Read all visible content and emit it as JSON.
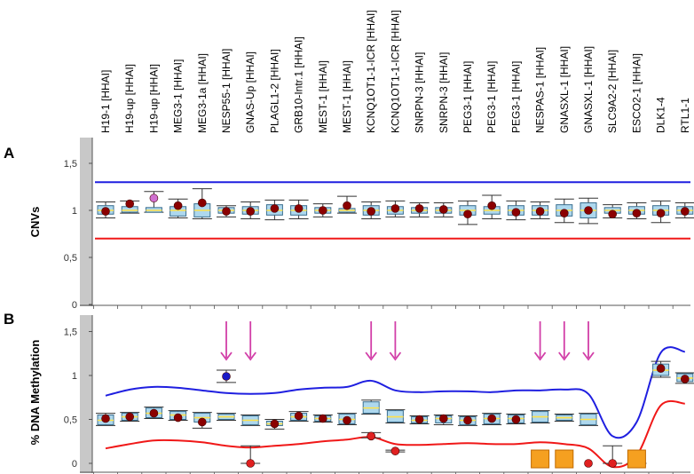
{
  "chart_data": [
    {
      "panel": "A",
      "type": "box",
      "ylabel": "CNVs",
      "ylim": [
        0,
        1.6
      ],
      "yticks": [
        "0",
        "0,5",
        "1",
        "1,5"
      ],
      "ytick_values": [
        0,
        0.5,
        1,
        1.5
      ],
      "threshold_upper": 1.3,
      "threshold_lower": 0.7,
      "probes": [
        "H19-1 [HHAI]",
        "H19-up [HHAI]",
        "H19-up [HHAI]",
        "MEG3-1 [HHAI]",
        "MEG3-1a [HHAI]",
        "NESP55-1 [HHAI]",
        "GNAS-Up [HHAI]",
        "PLAGL1-2 [HHAI]",
        "GRB10-Intr.1 [HHAI]",
        "MEST-1 [HHAI]",
        "MEST-1 [HHAI]",
        "KCNQ1OT1-1-ICR [HHAI]",
        "KCNQ1OT1-1-ICR [HHAI]",
        "SNRPN-3 [HHAI]",
        "SNRPN-3 [HHAI]",
        "PEG3-1 [HHAI]",
        "PEG3-1 [HHAI]",
        "PEG3-1 [HHAI]",
        "NESPAS-1 [HHAI]",
        "GNASXL-1 [HHAI]",
        "GNASXL-1 [HHAI]",
        "SLC9A2-2 [HHAI]",
        "ESCO2-1 [HHAI]",
        "DLK1-4",
        "RTL1-1"
      ],
      "boxes": [
        {
          "q1": 0.96,
          "q3": 1.05,
          "lo": 0.92,
          "hi": 1.09,
          "med": 1.0
        },
        {
          "q1": 0.98,
          "q3": 1.04,
          "lo": 0.97,
          "hi": 1.1,
          "med": 1.0
        },
        {
          "q1": 0.98,
          "q3": 1.03,
          "lo": 0.98,
          "hi": 1.2,
          "med": 1.0
        },
        {
          "q1": 0.94,
          "q3": 1.04,
          "lo": 0.92,
          "hi": 1.12,
          "med": 1.0
        },
        {
          "q1": 0.93,
          "q3": 1.07,
          "lo": 0.91,
          "hi": 1.23,
          "med": 1.0
        },
        {
          "q1": 0.97,
          "q3": 1.03,
          "lo": 0.93,
          "hi": 1.05,
          "med": 1.0
        },
        {
          "q1": 0.96,
          "q3": 1.04,
          "lo": 0.91,
          "hi": 1.09,
          "med": 1.0
        },
        {
          "q1": 0.95,
          "q3": 1.06,
          "lo": 0.9,
          "hi": 1.11,
          "med": 1.0
        },
        {
          "q1": 0.95,
          "q3": 1.05,
          "lo": 0.91,
          "hi": 1.11,
          "med": 1.0
        },
        {
          "q1": 0.97,
          "q3": 1.03,
          "lo": 0.93,
          "hi": 1.07,
          "med": 1.0
        },
        {
          "q1": 0.98,
          "q3": 1.02,
          "lo": 0.97,
          "hi": 1.15,
          "med": 1.0
        },
        {
          "q1": 0.95,
          "q3": 1.05,
          "lo": 0.91,
          "hi": 1.09,
          "med": 1.0
        },
        {
          "q1": 0.96,
          "q3": 1.04,
          "lo": 0.93,
          "hi": 1.1,
          "med": 1.0
        },
        {
          "q1": 0.97,
          "q3": 1.03,
          "lo": 0.93,
          "hi": 1.08,
          "med": 1.0
        },
        {
          "q1": 0.97,
          "q3": 1.03,
          "lo": 0.93,
          "hi": 1.08,
          "med": 1.0
        },
        {
          "q1": 0.95,
          "q3": 1.05,
          "lo": 0.85,
          "hi": 1.1,
          "med": 1.0
        },
        {
          "q1": 0.96,
          "q3": 1.04,
          "lo": 0.91,
          "hi": 1.16,
          "med": 1.0
        },
        {
          "q1": 0.95,
          "q3": 1.05,
          "lo": 0.9,
          "hi": 1.1,
          "med": 1.0
        },
        {
          "q1": 0.95,
          "q3": 1.05,
          "lo": 0.91,
          "hi": 1.09,
          "med": 1.0
        },
        {
          "q1": 0.94,
          "q3": 1.06,
          "lo": 0.87,
          "hi": 1.12,
          "med": 1.0
        },
        {
          "q1": 0.92,
          "q3": 1.08,
          "lo": 0.86,
          "hi": 1.13,
          "med": 1.0
        },
        {
          "q1": 0.97,
          "q3": 1.03,
          "lo": 0.92,
          "hi": 1.06,
          "med": 1.0
        },
        {
          "q1": 0.96,
          "q3": 1.04,
          "lo": 0.91,
          "hi": 1.08,
          "med": 1.0
        },
        {
          "q1": 0.95,
          "q3": 1.05,
          "lo": 0.87,
          "hi": 1.1,
          "med": 1.0
        },
        {
          "q1": 0.96,
          "q3": 1.04,
          "lo": 0.92,
          "hi": 1.08,
          "med": 1.0
        }
      ],
      "points": [
        {
          "probe": 0,
          "value": 0.99,
          "color": "#8b0000"
        },
        {
          "probe": 1,
          "value": 1.07,
          "color": "#8b0000"
        },
        {
          "probe": 2,
          "value": 1.13,
          "color": "#d070d0"
        },
        {
          "probe": 3,
          "value": 1.05,
          "color": "#8b0000"
        },
        {
          "probe": 4,
          "value": 1.08,
          "color": "#8b0000"
        },
        {
          "probe": 5,
          "value": 0.99,
          "color": "#8b0000"
        },
        {
          "probe": 6,
          "value": 0.99,
          "color": "#8b0000"
        },
        {
          "probe": 7,
          "value": 1.02,
          "color": "#8b0000"
        },
        {
          "probe": 8,
          "value": 1.02,
          "color": "#8b0000"
        },
        {
          "probe": 9,
          "value": 1.0,
          "color": "#8b0000"
        },
        {
          "probe": 10,
          "value": 1.05,
          "color": "#8b0000"
        },
        {
          "probe": 11,
          "value": 0.99,
          "color": "#8b0000"
        },
        {
          "probe": 12,
          "value": 1.02,
          "color": "#8b0000"
        },
        {
          "probe": 13,
          "value": 1.02,
          "color": "#8b0000"
        },
        {
          "probe": 14,
          "value": 1.01,
          "color": "#8b0000"
        },
        {
          "probe": 15,
          "value": 0.96,
          "color": "#8b0000"
        },
        {
          "probe": 16,
          "value": 1.05,
          "color": "#8b0000"
        },
        {
          "probe": 17,
          "value": 0.98,
          "color": "#8b0000"
        },
        {
          "probe": 18,
          "value": 0.99,
          "color": "#8b0000"
        },
        {
          "probe": 19,
          "value": 0.97,
          "color": "#8b0000"
        },
        {
          "probe": 20,
          "value": 1.0,
          "color": "#8b0000"
        },
        {
          "probe": 21,
          "value": 0.96,
          "color": "#8b0000"
        },
        {
          "probe": 22,
          "value": 0.97,
          "color": "#8b0000"
        },
        {
          "probe": 23,
          "value": 0.97,
          "color": "#8b0000"
        },
        {
          "probe": 24,
          "value": 0.99,
          "color": "#8b0000"
        }
      ]
    },
    {
      "panel": "B",
      "type": "box",
      "ylabel": "% DNA Methylation",
      "ylim": [
        0,
        1.65
      ],
      "yticks": [
        "0",
        "0,5",
        "1",
        "1,5"
      ],
      "ytick_values": [
        0,
        0.5,
        1,
        1.5
      ],
      "upper_curve": [
        0.77,
        0.84,
        0.87,
        0.86,
        0.83,
        0.8,
        0.79,
        0.8,
        0.84,
        0.86,
        0.87,
        0.94,
        0.83,
        0.81,
        0.82,
        0.82,
        0.81,
        0.83,
        0.83,
        0.84,
        0.79,
        0.31,
        0.47,
        1.26,
        1.27
      ],
      "lower_curve": [
        0.17,
        0.22,
        0.26,
        0.26,
        0.24,
        0.2,
        0.18,
        0.2,
        0.22,
        0.25,
        0.27,
        0.3,
        0.22,
        0.21,
        0.22,
        0.23,
        0.22,
        0.22,
        0.24,
        0.22,
        0.17,
        -0.04,
        0.09,
        0.66,
        0.68
      ],
      "boxes": [
        {
          "q1": 0.44,
          "q3": 0.55,
          "lo": 0.43,
          "hi": 0.57,
          "med": 0.49
        },
        {
          "q1": 0.49,
          "q3": 0.57,
          "lo": 0.48,
          "hi": 0.58,
          "med": 0.53
        },
        {
          "q1": 0.52,
          "q3": 0.63,
          "lo": 0.51,
          "hi": 0.64,
          "med": 0.57
        },
        {
          "q1": 0.5,
          "q3": 0.59,
          "lo": 0.49,
          "hi": 0.6,
          "med": 0.55
        },
        {
          "q1": 0.47,
          "q3": 0.57,
          "lo": 0.4,
          "hi": 0.58,
          "med": 0.52
        },
        {
          "q1": 0.5,
          "q3": 0.56,
          "lo": 0.49,
          "hi": 0.57,
          "med": 0.53
        },
        {
          "q1": 0.44,
          "q3": 0.54,
          "lo": 0.43,
          "hi": 0.55,
          "med": 0.49
        },
        {
          "q1": 0.43,
          "q3": 0.48,
          "lo": 0.39,
          "hi": 0.5,
          "med": 0.45
        },
        {
          "q1": 0.49,
          "q3": 0.57,
          "lo": 0.48,
          "hi": 0.59,
          "med": 0.53
        },
        {
          "q1": 0.48,
          "q3": 0.54,
          "lo": 0.47,
          "hi": 0.55,
          "med": 0.51
        },
        {
          "q1": 0.45,
          "q3": 0.56,
          "lo": 0.44,
          "hi": 0.57,
          "med": 0.5
        },
        {
          "q1": 0.57,
          "q3": 0.7,
          "lo": 0.56,
          "hi": 0.72,
          "med": 0.63
        },
        {
          "q1": 0.47,
          "q3": 0.6,
          "lo": 0.46,
          "hi": 0.61,
          "med": 0.53
        },
        {
          "q1": 0.46,
          "q3": 0.53,
          "lo": 0.45,
          "hi": 0.54,
          "med": 0.49
        },
        {
          "q1": 0.46,
          "q3": 0.54,
          "lo": 0.44,
          "hi": 0.55,
          "med": 0.51
        },
        {
          "q1": 0.44,
          "q3": 0.53,
          "lo": 0.43,
          "hi": 0.54,
          "med": 0.49
        },
        {
          "q1": 0.45,
          "q3": 0.56,
          "lo": 0.44,
          "hi": 0.57,
          "med": 0.51
        },
        {
          "q1": 0.46,
          "q3": 0.55,
          "lo": 0.45,
          "hi": 0.56,
          "med": 0.51
        },
        {
          "q1": 0.47,
          "q3": 0.59,
          "lo": 0.46,
          "hi": 0.6,
          "med": 0.53
        },
        {
          "q1": 0.49,
          "q3": 0.55,
          "lo": 0.48,
          "hi": 0.56,
          "med": 0.52
        },
        {
          "q1": 0.44,
          "q3": 0.56,
          "lo": 0.43,
          "hi": 0.57,
          "med": 0.5
        },
        {
          "q1": 0.0,
          "q3": 0.0,
          "lo": 0.0,
          "hi": 0.2,
          "med": 0.0,
          "no_box": true
        },
        {
          "q1": 0.0,
          "q3": 0.0,
          "lo": 0.0,
          "hi": 0.0,
          "med": 0.0,
          "no_box": true
        },
        {
          "q1": 1.0,
          "q3": 1.13,
          "lo": 0.98,
          "hi": 1.16,
          "med": 1.06
        },
        {
          "q1": 0.93,
          "q3": 1.02,
          "lo": 0.91,
          "hi": 1.03,
          "med": 0.97
        }
      ],
      "extra_boxes": [
        {
          "x": 5.0,
          "q1": 0.98,
          "q3": 1.02,
          "lo": 0.92,
          "hi": 1.06,
          "med": 1.0,
          "plain": true
        },
        {
          "x": 6.0,
          "q1": 0.0,
          "q3": 0.0,
          "lo": 0.0,
          "hi": 0.2,
          "med": 0.0,
          "plain": true
        },
        {
          "x": 11.0,
          "q1": 0.3,
          "q3": 0.34,
          "lo": 0.29,
          "hi": 0.35,
          "med": 0.32,
          "plain": true
        },
        {
          "x": 12.0,
          "q1": 0.13,
          "q3": 0.15,
          "lo": 0.13,
          "hi": 0.15,
          "med": 0.14,
          "plain": true
        }
      ],
      "points": [
        {
          "probe": 0,
          "value": 0.51,
          "color": "#8b0000"
        },
        {
          "probe": 1,
          "value": 0.53,
          "color": "#8b0000"
        },
        {
          "probe": 2,
          "value": 0.57,
          "color": "#8b0000"
        },
        {
          "probe": 3,
          "value": 0.52,
          "color": "#8b0000"
        },
        {
          "probe": 4,
          "value": 0.47,
          "color": "#8b0000"
        },
        {
          "probe": 5,
          "value": 0.99,
          "color": "#1a1ac8"
        },
        {
          "probe": 6,
          "value": 0.0,
          "color": "#e02020"
        },
        {
          "probe": 7,
          "value": 0.45,
          "color": "#8b0000"
        },
        {
          "probe": 8,
          "value": 0.54,
          "color": "#8b0000"
        },
        {
          "probe": 9,
          "value": 0.51,
          "color": "#8b0000"
        },
        {
          "probe": 10,
          "value": 0.49,
          "color": "#8b0000"
        },
        {
          "probe": 11,
          "value": 0.31,
          "color": "#e02020"
        },
        {
          "probe": 12,
          "value": 0.14,
          "color": "#e02020"
        },
        {
          "probe": 13,
          "value": 0.5,
          "color": "#8b0000"
        },
        {
          "probe": 14,
          "value": 0.51,
          "color": "#8b0000"
        },
        {
          "probe": 15,
          "value": 0.49,
          "color": "#8b0000"
        },
        {
          "probe": 16,
          "value": 0.51,
          "color": "#8b0000"
        },
        {
          "probe": 17,
          "value": 0.5,
          "color": "#8b0000"
        },
        {
          "probe": 20,
          "value": 0.0,
          "color": "#e02020"
        },
        {
          "probe": 21,
          "value": 0.0,
          "color": "#e02020"
        },
        {
          "probe": 23,
          "value": 1.08,
          "color": "#8b0000"
        },
        {
          "probe": 24,
          "value": 0.96,
          "color": "#8b0000"
        }
      ],
      "squares": [
        {
          "probe": 18,
          "value": 0.03
        },
        {
          "probe": 19,
          "value": 0.03
        },
        {
          "probe": 22,
          "value": 0.03
        }
      ],
      "arrows": [
        5,
        6,
        11,
        12,
        18,
        19,
        20
      ]
    }
  ],
  "colors": {
    "upper": "#1f1fe0",
    "lower": "#f01818",
    "box_fill": "#aed8ee",
    "box_stroke": "#3a6e8e",
    "arrow": "#d23fa8",
    "square": "#f5a020",
    "side_bar": "#c8c8c8",
    "axis": "#555555"
  }
}
